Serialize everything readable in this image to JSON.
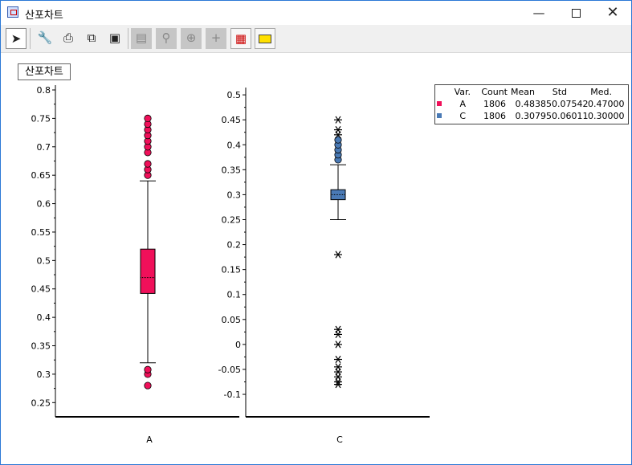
{
  "window": {
    "title": "산포차트",
    "icon": "chart-window-icon",
    "controls": [
      "minimize",
      "maximize",
      "close"
    ]
  },
  "toolbar": {
    "buttons": [
      {
        "name": "pointer",
        "icon": "arrow-pointer-icon",
        "state": "pressed"
      },
      {
        "name": "tools",
        "icon": "wrench-screwdriver-icon",
        "state": "enabled"
      },
      {
        "name": "print",
        "icon": "printer-icon",
        "state": "enabled"
      },
      {
        "name": "copy",
        "icon": "copy-pages-icon",
        "state": "enabled"
      },
      {
        "name": "save",
        "icon": "floppy-disk-icon",
        "state": "enabled"
      },
      {
        "name": "page-setup",
        "icon": "page-icon",
        "state": "disabled"
      },
      {
        "name": "zoom",
        "icon": "magnify-icon",
        "state": "disabled"
      },
      {
        "name": "axis",
        "icon": "axis-icon",
        "state": "disabled"
      },
      {
        "name": "crosshair",
        "icon": "crosshair-icon",
        "state": "disabled"
      },
      {
        "name": "export",
        "icon": "export-icon",
        "state": "enabled"
      },
      {
        "name": "label",
        "icon": "label-icon",
        "state": "enabled"
      }
    ]
  },
  "colors": {
    "A": "#f0105a",
    "C": "#4a7ab5"
  },
  "chart_data": [
    {
      "type": "boxplot",
      "title": "산포차트",
      "xlabel": "A",
      "ylim": [
        0.225,
        0.8
      ],
      "yticks": [
        0.25,
        0.3,
        0.35,
        0.4,
        0.45,
        0.5,
        0.55,
        0.6,
        0.65,
        0.7,
        0.75,
        0.8
      ],
      "ytick_labels": [
        "0.25",
        "0.3",
        "0.35",
        "0.4",
        "0.45",
        "0.5",
        "0.55",
        "0.6",
        "0.65",
        "0.7",
        "0.75",
        "0.8"
      ],
      "series": [
        {
          "name": "A",
          "whisker_low": 0.32,
          "q1": 0.442,
          "median": 0.47,
          "q3": 0.52,
          "whisker_high": 0.64,
          "outliers": [
            0.28,
            0.3,
            0.308,
            0.65,
            0.66,
            0.67,
            0.69,
            0.7,
            0.71,
            0.72,
            0.73,
            0.74,
            0.75
          ],
          "extreme_outliers": []
        }
      ]
    },
    {
      "type": "boxplot",
      "xlabel": "C",
      "ylim": [
        -0.145,
        0.505
      ],
      "yticks": [
        -0.1,
        -0.05,
        0,
        0.05,
        0.1,
        0.15,
        0.2,
        0.25,
        0.3,
        0.35,
        0.4,
        0.45,
        0.5
      ],
      "ytick_labels": [
        "-0.1",
        "-0.05",
        "0",
        "0.05",
        "0.1",
        "0.15",
        "0.2",
        "0.25",
        "0.3",
        "0.35",
        "0.4",
        "0.45",
        "0.5"
      ],
      "series": [
        {
          "name": "C",
          "whisker_low": 0.25,
          "q1": 0.29,
          "median": 0.3,
          "q3": 0.31,
          "whisker_high": 0.36,
          "outliers": [
            0.37,
            0.38,
            0.39,
            0.4,
            0.41
          ],
          "extreme_outliers": [
            0.18,
            0.03,
            0.02,
            0.0,
            -0.03,
            -0.045,
            -0.055,
            -0.065,
            -0.075,
            -0.08,
            0.42,
            0.43,
            0.45
          ]
        }
      ]
    }
  ],
  "legend": {
    "headers": [
      "Var.",
      "Count",
      "Mean",
      "Std",
      "Med."
    ],
    "rows": [
      {
        "var": "A",
        "count": "1806",
        "mean": "0.48385",
        "std": "0.07542",
        "med": "0.47000"
      },
      {
        "var": "C",
        "count": "1806",
        "mean": "0.30795",
        "std": "0.06011",
        "med": "0.30000"
      }
    ]
  }
}
